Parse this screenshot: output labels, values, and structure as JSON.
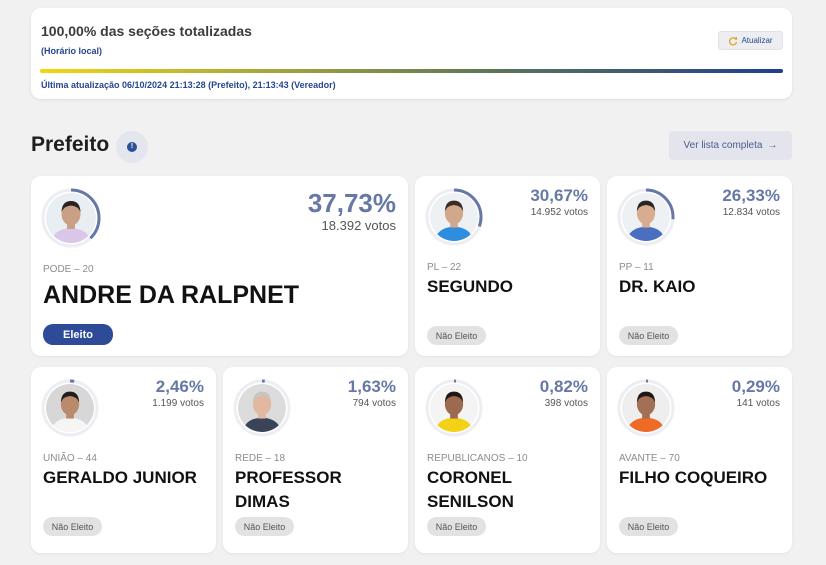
{
  "status": {
    "title": "100,00% das seções totalizadas",
    "subtitle": "(Horário local)",
    "refresh_label": "Atualizar",
    "progress_fraction": 1.0,
    "last_update": "Última atualização 06/10/2024 21:13:28 (Prefeito), 21:13:43 (Vereador)"
  },
  "section": {
    "title": "Prefeito",
    "info_icon": "info-icon",
    "list_button": "Ver lista completa",
    "list_arrow": "→"
  },
  "colors": {
    "accent": "#2e4b97",
    "percent": "#6778a6",
    "elected": "#2e4b97",
    "not_elected": "#e2e2e2"
  },
  "candidates": [
    {
      "party": "PODE – 20",
      "name": "ANDRE DA RALPNET",
      "pct": "37,73%",
      "votes": "18.392 votos",
      "status": "Eleito",
      "share": 0.3773,
      "shirt": "#d9c6e8",
      "skin": "#c9a086",
      "hair": "#2a2322",
      "bg": "#e9eef3"
    },
    {
      "party": "PL – 22",
      "name": "SEGUNDO",
      "pct": "30,67%",
      "votes": "14.952 votos",
      "status": "Não Eleito",
      "share": 0.3067,
      "shirt": "#2f8de0",
      "skin": "#d2a88c",
      "hair": "#3a2d24",
      "bg": "#eef1f4"
    },
    {
      "party": "PP – 11",
      "name": "DR. KAIO",
      "pct": "26,33%",
      "votes": "12.834 votos",
      "status": "Não Eleito",
      "share": 0.2633,
      "shirt": "#4b6fc0",
      "skin": "#d8ac8e",
      "hair": "#2b2420",
      "bg": "#eef1f4"
    },
    {
      "party": "UNIÃO – 44",
      "name": "GERALDO JUNIOR",
      "pct": "2,46%",
      "votes": "1.199 votos",
      "status": "Não Eleito",
      "share": 0.0246,
      "shirt": "#f5f5f5",
      "skin": "#b98a6c",
      "hair": "#231c19",
      "bg": "#d7d7d7"
    },
    {
      "party": "REDE – 18",
      "name": "PROFESSOR DIMAS",
      "pct": "1,63%",
      "votes": "794 votos",
      "status": "Não Eleito",
      "share": 0.0163,
      "shirt": "#3a4458",
      "skin": "#e2b9a0",
      "hair": "#c8c4c0",
      "bg": "#dcdcdc"
    },
    {
      "party": "REPUBLICANOS – 10",
      "name": "CORONEL SENILSON",
      "pct": "0,82%",
      "votes": "398 votos",
      "status": "Não Eleito",
      "share": 0.0082,
      "shirt": "#f3d117",
      "skin": "#9c6a4f",
      "hair": "#1e1714",
      "bg": "#f4f4f4"
    },
    {
      "party": "AVANTE – 70",
      "name": "FILHO COQUEIRO",
      "pct": "0,29%",
      "votes": "141 votos",
      "status": "Não Eleito",
      "share": 0.0029,
      "shirt": "#ef6a25",
      "skin": "#a47055",
      "hair": "#1f1814",
      "bg": "#eeeeee"
    }
  ]
}
